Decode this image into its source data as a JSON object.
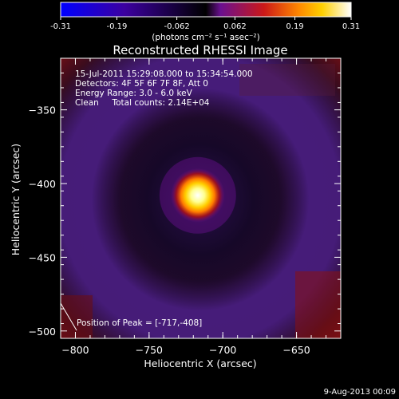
{
  "colorbar": {
    "ticks": [
      "-0.31",
      "-0.19",
      "-0.062",
      "0.062",
      "0.19",
      "0.31"
    ],
    "range": [
      -0.31,
      0.31
    ],
    "unit_label": "(photons cm⁻² s⁻¹ asec⁻²)"
  },
  "info": {
    "line1": "15-Jul-2011 15:29:08.000 to 15:34:54.000",
    "line2": "Detectors: 4F 5F 6F 7F 8F, Att 0",
    "line3": "Energy Range: 3.0 - 6.0 keV",
    "line4": "Clean     Total counts: 2.14E+04"
  },
  "peak_label": "Position of Peak = [-717,-408]",
  "footer_date": "9-Aug-2013 00:09",
  "chart_data": {
    "type": "heatmap",
    "title": "Reconstructed RHESSI Image",
    "xlabel": "Heliocentric X (arcsec)",
    "ylabel": "Heliocentric Y (arcsec)",
    "xlim": [
      -810,
      -620
    ],
    "ylim": [
      -505,
      -315
    ],
    "xticks": [
      -800,
      -750,
      -700,
      -650
    ],
    "yticks": [
      -350,
      -400,
      -450,
      -500
    ],
    "peak": [
      -717,
      -408
    ],
    "colormap": "RHESSI blue-purple-red-yellow-white",
    "colormap_stops": [
      "#0000ff",
      "#3c00a0",
      "#000000",
      "#6a1090",
      "#cc1818",
      "#ff8800",
      "#ffd000",
      "#ffffff"
    ]
  }
}
